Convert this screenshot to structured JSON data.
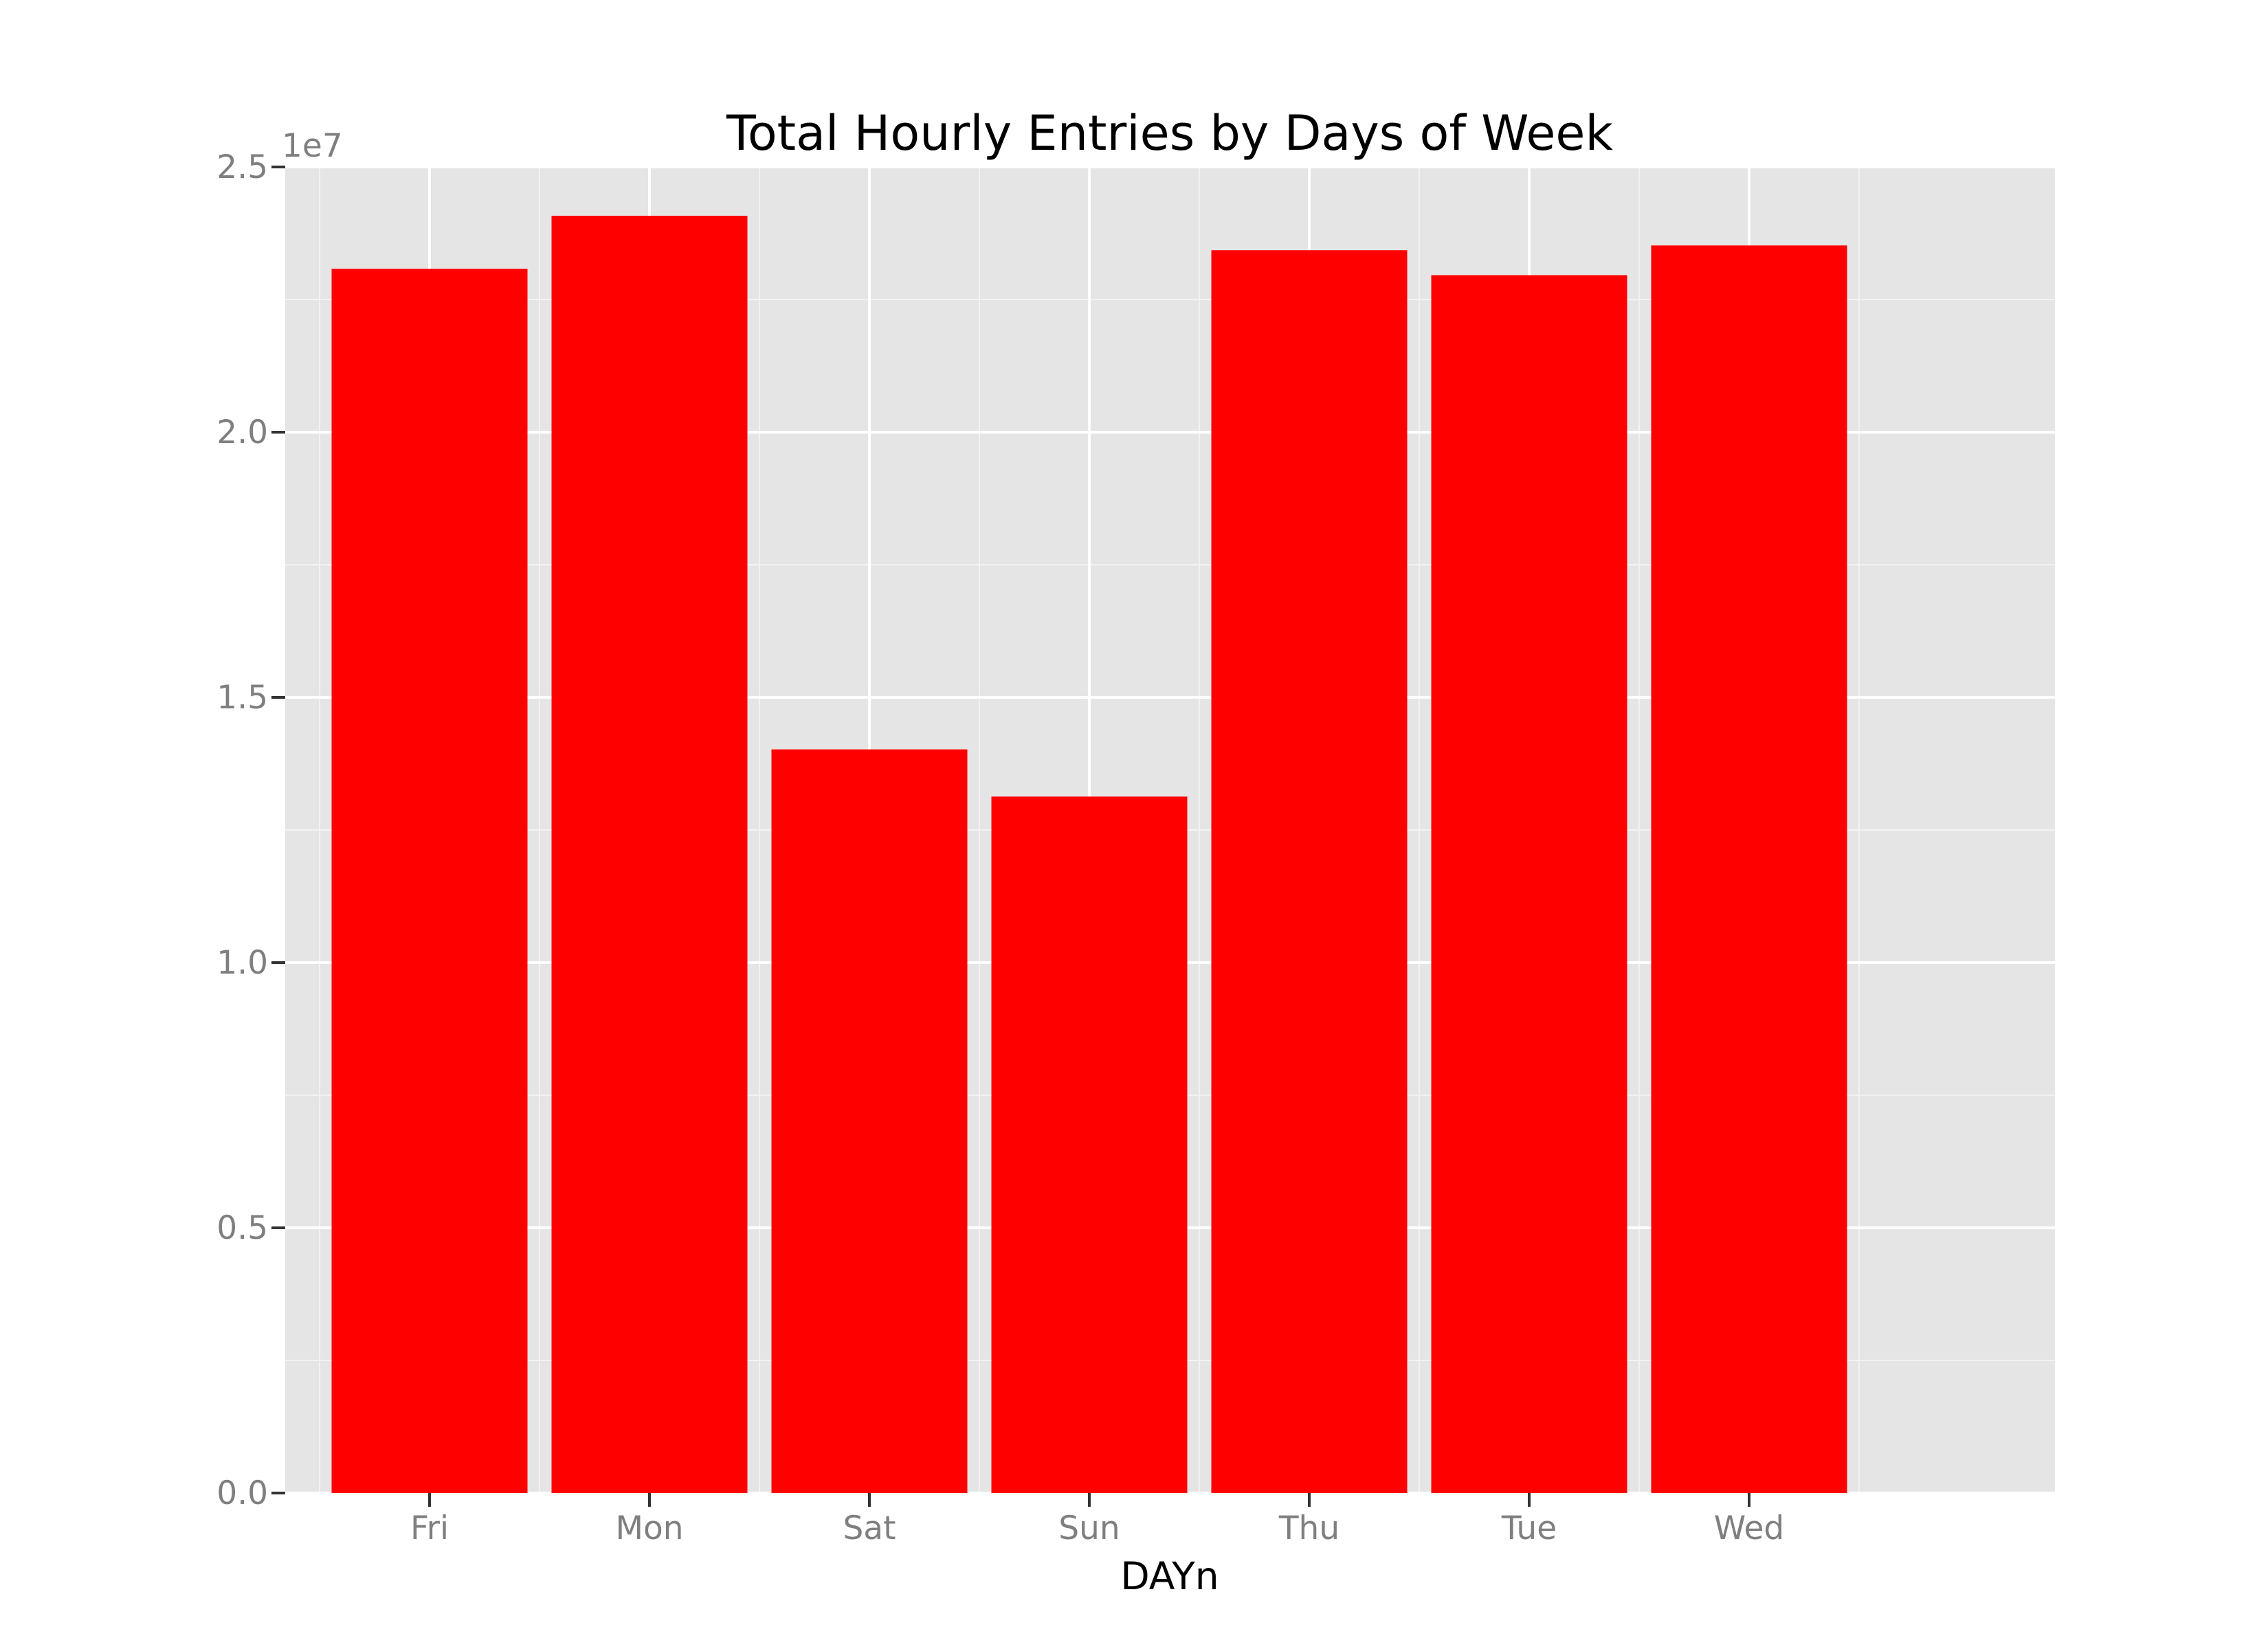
{
  "chart_data": {
    "type": "bar",
    "title": "Total Hourly Entries by Days of Week",
    "xlabel": "DAYn",
    "ylabel": "",
    "y_offset_label": "1e7",
    "categories": [
      "Fri",
      "Mon",
      "Sat",
      "Sun",
      "Thu",
      "Tue",
      "Wed"
    ],
    "values": [
      23080000,
      24080000,
      14020000,
      13130000,
      23430000,
      22960000,
      23520000
    ],
    "ylim": [
      0,
      25000000
    ],
    "y_ticks": [
      0,
      5000000,
      10000000,
      15000000,
      20000000,
      25000000
    ],
    "y_tick_labels": [
      "0.0",
      "0.5",
      "1.0",
      "1.5",
      "2.0",
      "2.5"
    ],
    "grid": true,
    "legend": "none",
    "bar_color": "#ff0000",
    "panel_background": "#e5e5e5",
    "grid_color": "#ffffff"
  }
}
